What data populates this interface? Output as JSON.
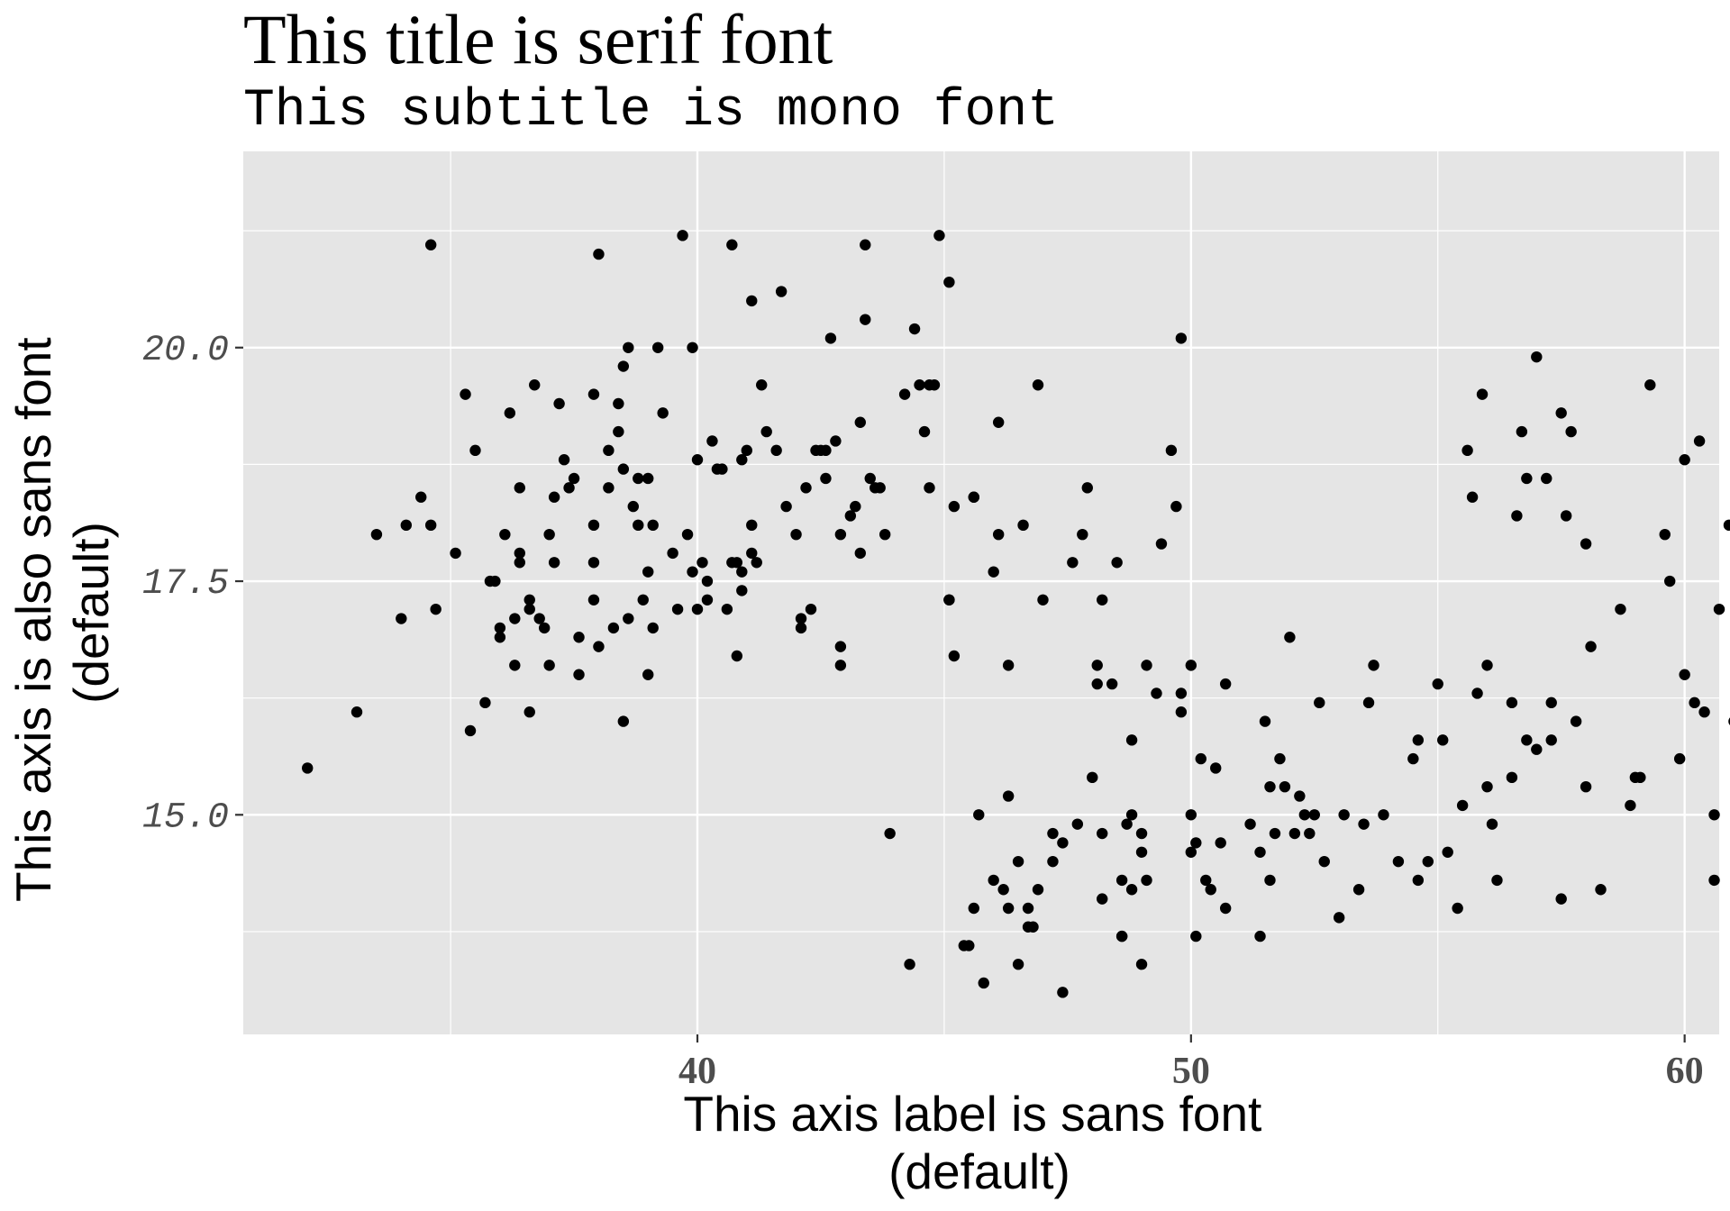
{
  "chart_data": {
    "type": "scatter",
    "title": "This title is serif font",
    "subtitle": "This subtitle is mono font",
    "xlabel": "This axis label is sans font (default)",
    "ylabel": "This axis is also sans font (default)",
    "xlim": [
      30.8,
      60.7
    ],
    "ylim": [
      12.65,
      22.1
    ],
    "x_ticks": [
      40,
      50,
      60
    ],
    "x_tick_labels": [
      "40",
      "50",
      "60"
    ],
    "y_ticks": [
      15.0,
      17.5,
      20.0
    ],
    "y_tick_labels": [
      "15.0",
      "17.5",
      "20.0"
    ],
    "grid": true,
    "panel_background": "#e5e5e5",
    "grid_color": "#ffffff",
    "point_color": "#000000",
    "points": [
      [
        32.1,
        15.5
      ],
      [
        33.1,
        16.1
      ],
      [
        33.5,
        18.0
      ],
      [
        34.0,
        17.1
      ],
      [
        34.1,
        18.1
      ],
      [
        34.4,
        18.4
      ],
      [
        34.6,
        18.1
      ],
      [
        34.6,
        21.1
      ],
      [
        34.7,
        17.2
      ],
      [
        35.1,
        17.8
      ],
      [
        35.3,
        19.5
      ],
      [
        35.4,
        15.9
      ],
      [
        35.5,
        18.9
      ],
      [
        35.7,
        16.2
      ],
      [
        35.8,
        17.5
      ],
      [
        35.9,
        17.5
      ],
      [
        36.0,
        17.0
      ],
      [
        36.0,
        16.9
      ],
      [
        36.1,
        18.0
      ],
      [
        36.2,
        19.3
      ],
      [
        36.3,
        16.6
      ],
      [
        36.3,
        17.1
      ],
      [
        36.4,
        17.8
      ],
      [
        36.4,
        17.7
      ],
      [
        36.4,
        18.5
      ],
      [
        36.6,
        16.1
      ],
      [
        36.6,
        17.2
      ],
      [
        36.6,
        17.3
      ],
      [
        36.7,
        19.6
      ],
      [
        36.8,
        17.1
      ],
      [
        36.9,
        17.0
      ],
      [
        37.0,
        16.6
      ],
      [
        37.0,
        18.0
      ],
      [
        37.1,
        17.7
      ],
      [
        37.1,
        18.4
      ],
      [
        37.2,
        19.4
      ],
      [
        37.3,
        18.8
      ],
      [
        37.4,
        18.5
      ],
      [
        37.5,
        18.6
      ],
      [
        37.6,
        16.5
      ],
      [
        37.6,
        16.9
      ],
      [
        37.9,
        17.3
      ],
      [
        37.9,
        17.7
      ],
      [
        37.9,
        18.1
      ],
      [
        37.9,
        19.5
      ],
      [
        38.0,
        16.8
      ],
      [
        38.0,
        21.0
      ],
      [
        38.2,
        18.5
      ],
      [
        38.2,
        18.9
      ],
      [
        38.3,
        17.0
      ],
      [
        38.4,
        19.1
      ],
      [
        38.4,
        19.4
      ],
      [
        38.5,
        16.0
      ],
      [
        38.5,
        18.7
      ],
      [
        38.5,
        19.8
      ],
      [
        38.6,
        20.0
      ],
      [
        38.6,
        17.1
      ],
      [
        38.7,
        18.3
      ],
      [
        38.8,
        18.6
      ],
      [
        38.8,
        18.1
      ],
      [
        38.9,
        17.3
      ],
      [
        39.0,
        17.6
      ],
      [
        39.0,
        18.6
      ],
      [
        39.0,
        16.5
      ],
      [
        39.1,
        17.0
      ],
      [
        39.1,
        18.1
      ],
      [
        39.2,
        20.0
      ],
      [
        39.3,
        19.3
      ],
      [
        39.5,
        17.8
      ],
      [
        39.6,
        17.2
      ],
      [
        39.7,
        21.2
      ],
      [
        39.8,
        18.0
      ],
      [
        39.9,
        17.6
      ],
      [
        39.9,
        20.0
      ],
      [
        40.0,
        17.2
      ],
      [
        40.0,
        18.8
      ],
      [
        40.1,
        17.7
      ],
      [
        40.2,
        17.5
      ],
      [
        40.2,
        17.3
      ],
      [
        40.3,
        19.0
      ],
      [
        40.4,
        18.7
      ],
      [
        40.5,
        18.7
      ],
      [
        40.6,
        17.2
      ],
      [
        40.7,
        17.7
      ],
      [
        40.7,
        21.1
      ],
      [
        40.8,
        16.7
      ],
      [
        40.8,
        17.7
      ],
      [
        40.9,
        17.4
      ],
      [
        40.9,
        18.8
      ],
      [
        40.9,
        17.6
      ],
      [
        41.0,
        18.9
      ],
      [
        41.1,
        20.5
      ],
      [
        41.1,
        18.1
      ],
      [
        41.1,
        17.8
      ],
      [
        41.2,
        17.7
      ],
      [
        41.3,
        19.6
      ],
      [
        41.4,
        19.1
      ],
      [
        41.6,
        18.9
      ],
      [
        41.7,
        20.6
      ],
      [
        41.8,
        18.3
      ],
      [
        42.0,
        18.0
      ],
      [
        42.1,
        17.1
      ],
      [
        42.1,
        17.0
      ],
      [
        42.2,
        18.5
      ],
      [
        42.3,
        17.2
      ],
      [
        42.4,
        18.9
      ],
      [
        42.5,
        18.9
      ],
      [
        42.6,
        18.9
      ],
      [
        42.6,
        18.6
      ],
      [
        42.7,
        20.1
      ],
      [
        42.8,
        19.0
      ],
      [
        42.9,
        18.0
      ],
      [
        42.9,
        16.8
      ],
      [
        42.9,
        16.6
      ],
      [
        43.1,
        18.2
      ],
      [
        43.2,
        18.3
      ],
      [
        43.3,
        19.2
      ],
      [
        43.3,
        17.8
      ],
      [
        43.4,
        21.1
      ],
      [
        43.4,
        20.3
      ],
      [
        43.5,
        18.6
      ],
      [
        43.6,
        18.5
      ],
      [
        43.7,
        18.5
      ],
      [
        43.8,
        18.0
      ],
      [
        43.9,
        14.8
      ],
      [
        44.2,
        19.5
      ],
      [
        44.3,
        13.4
      ],
      [
        44.4,
        20.2
      ],
      [
        44.5,
        19.6
      ],
      [
        44.6,
        19.1
      ],
      [
        44.7,
        19.6
      ],
      [
        44.7,
        18.5
      ],
      [
        44.8,
        19.6
      ],
      [
        44.9,
        21.2
      ],
      [
        45.1,
        17.3
      ],
      [
        45.1,
        17.3
      ],
      [
        45.1,
        20.7
      ],
      [
        45.2,
        16.7
      ],
      [
        45.2,
        18.3
      ],
      [
        45.4,
        13.6
      ],
      [
        45.5,
        13.6
      ],
      [
        45.6,
        18.4
      ],
      [
        45.6,
        18.4
      ],
      [
        45.6,
        14.0
      ],
      [
        45.7,
        15.0
      ],
      [
        45.8,
        13.2
      ],
      [
        46.0,
        14.3
      ],
      [
        46.0,
        17.6
      ],
      [
        46.1,
        19.2
      ],
      [
        46.1,
        18.0
      ],
      [
        46.2,
        14.2
      ],
      [
        46.3,
        14.0
      ],
      [
        46.3,
        16.6
      ],
      [
        46.3,
        15.2
      ],
      [
        46.5,
        13.4
      ],
      [
        46.5,
        14.5
      ],
      [
        46.6,
        18.1
      ],
      [
        46.7,
        14.0
      ],
      [
        46.7,
        13.8
      ],
      [
        46.8,
        13.8
      ],
      [
        46.9,
        14.2
      ],
      [
        46.9,
        19.6
      ],
      [
        47.0,
        17.3
      ],
      [
        47.2,
        14.8
      ],
      [
        47.2,
        14.5
      ],
      [
        47.4,
        14.7
      ],
      [
        47.4,
        13.1
      ],
      [
        47.6,
        17.7
      ],
      [
        47.7,
        14.9
      ],
      [
        47.8,
        18.0
      ],
      [
        47.9,
        18.5
      ],
      [
        48.0,
        15.4
      ],
      [
        48.1,
        16.6
      ],
      [
        48.1,
        16.4
      ],
      [
        48.2,
        17.3
      ],
      [
        48.2,
        14.1
      ],
      [
        48.2,
        14.8
      ],
      [
        48.4,
        16.4
      ],
      [
        48.5,
        17.7
      ],
      [
        48.6,
        13.7
      ],
      [
        48.6,
        13.7
      ],
      [
        48.6,
        14.3
      ],
      [
        48.7,
        14.9
      ],
      [
        48.8,
        14.2
      ],
      [
        48.8,
        15.0
      ],
      [
        48.8,
        15.8
      ],
      [
        49.0,
        14.6
      ],
      [
        49.0,
        14.8
      ],
      [
        49.0,
        13.4
      ],
      [
        49.1,
        16.6
      ],
      [
        49.1,
        14.3
      ],
      [
        49.3,
        16.3
      ],
      [
        49.4,
        17.9
      ],
      [
        49.6,
        18.9
      ],
      [
        49.7,
        18.3
      ],
      [
        49.8,
        20.1
      ],
      [
        49.8,
        16.3
      ],
      [
        49.8,
        16.1
      ],
      [
        50.0,
        14.6
      ],
      [
        50.0,
        16.6
      ],
      [
        50.0,
        15.0
      ],
      [
        50.1,
        14.7
      ],
      [
        50.1,
        13.7
      ],
      [
        50.2,
        15.6
      ],
      [
        50.3,
        14.3
      ],
      [
        50.4,
        14.2
      ],
      [
        50.5,
        15.5
      ],
      [
        50.6,
        14.7
      ],
      [
        50.7,
        16.4
      ],
      [
        50.7,
        14.0
      ],
      [
        51.2,
        14.9
      ],
      [
        51.4,
        14.6
      ],
      [
        51.4,
        13.7
      ],
      [
        51.5,
        16.0
      ],
      [
        51.6,
        15.3
      ],
      [
        51.6,
        14.3
      ],
      [
        51.7,
        14.8
      ],
      [
        51.8,
        15.6
      ],
      [
        51.9,
        15.3
      ],
      [
        52.0,
        16.9
      ],
      [
        52.1,
        14.8
      ],
      [
        52.2,
        15.2
      ],
      [
        52.3,
        15.0
      ],
      [
        52.4,
        14.8
      ],
      [
        52.5,
        15.0
      ],
      [
        52.6,
        16.2
      ],
      [
        52.7,
        14.5
      ],
      [
        53.0,
        13.9
      ],
      [
        53.1,
        15.0
      ],
      [
        53.4,
        14.2
      ],
      [
        53.5,
        14.9
      ],
      [
        53.6,
        16.2
      ],
      [
        53.7,
        16.6
      ],
      [
        53.9,
        15.0
      ],
      [
        54.2,
        14.5
      ],
      [
        54.5,
        15.6
      ],
      [
        54.6,
        15.8
      ],
      [
        54.6,
        14.3
      ],
      [
        54.8,
        14.5
      ],
      [
        55.0,
        16.4
      ],
      [
        55.1,
        15.8
      ],
      [
        55.2,
        14.6
      ],
      [
        55.4,
        14.0
      ],
      [
        55.5,
        15.1
      ],
      [
        55.6,
        18.9
      ],
      [
        55.7,
        18.4
      ],
      [
        55.8,
        16.3
      ],
      [
        55.9,
        19.5
      ],
      [
        56.0,
        15.3
      ],
      [
        56.0,
        16.6
      ],
      [
        56.1,
        14.9
      ],
      [
        56.2,
        14.3
      ],
      [
        56.5,
        15.4
      ],
      [
        56.5,
        16.2
      ],
      [
        56.6,
        18.2
      ],
      [
        56.7,
        19.1
      ],
      [
        56.8,
        18.6
      ],
      [
        56.8,
        15.8
      ],
      [
        57.0,
        19.9
      ],
      [
        57.0,
        15.7
      ],
      [
        57.2,
        18.6
      ],
      [
        57.3,
        16.2
      ],
      [
        57.3,
        15.8
      ],
      [
        57.5,
        19.3
      ],
      [
        57.5,
        14.1
      ],
      [
        57.6,
        18.2
      ],
      [
        57.7,
        19.1
      ],
      [
        57.8,
        16.0
      ],
      [
        58.0,
        17.9
      ],
      [
        58.0,
        15.3
      ],
      [
        58.1,
        16.8
      ],
      [
        58.3,
        14.2
      ],
      [
        58.7,
        17.2
      ],
      [
        58.9,
        15.1
      ],
      [
        59.0,
        15.4
      ],
      [
        59.1,
        15.4
      ],
      [
        59.3,
        19.6
      ],
      [
        59.6,
        18.0
      ],
      [
        59.7,
        17.5
      ],
      [
        59.9,
        15.6
      ],
      [
        60.0,
        16.5
      ],
      [
        60.0,
        18.8
      ],
      [
        60.2,
        16.2
      ],
      [
        60.3,
        19.0
      ],
      [
        60.4,
        16.1
      ],
      [
        60.6,
        15.0
      ],
      [
        60.6,
        14.3
      ],
      [
        60.7,
        17.2
      ],
      [
        60.9,
        18.1
      ],
      [
        61.0,
        16.0
      ]
    ]
  }
}
